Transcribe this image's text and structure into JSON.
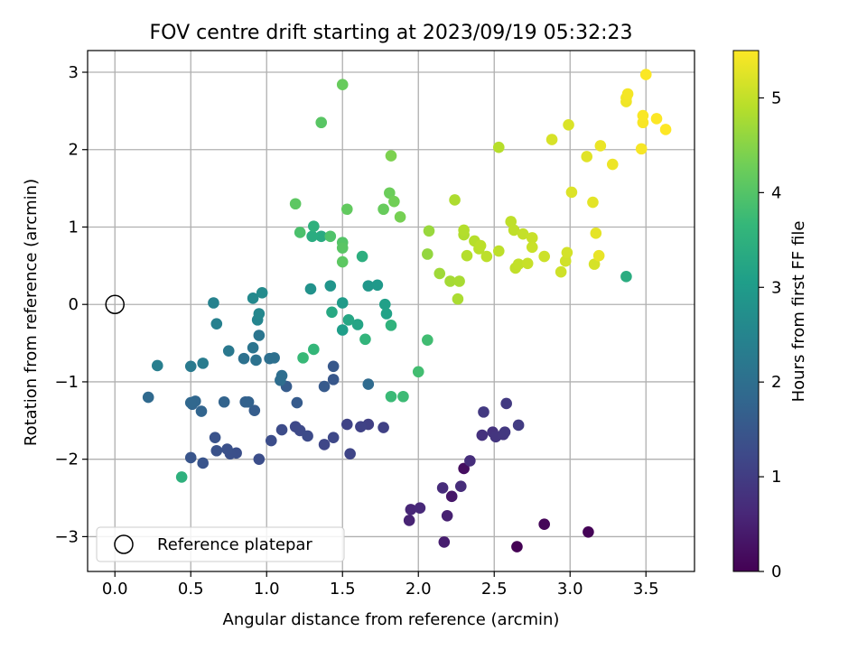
{
  "chart_data": {
    "type": "scatter",
    "title": "FOV centre drift starting at 2023/09/19 05:32:23",
    "xlabel": "Angular distance from reference (arcmin)",
    "ylabel": "Rotation from reference (arcmin)",
    "xlim": [
      -0.18,
      3.82
    ],
    "ylim": [
      -3.45,
      3.28
    ],
    "xticks": [
      0.0,
      0.5,
      1.0,
      1.5,
      2.0,
      2.5,
      3.0,
      3.5
    ],
    "xtick_labels": [
      "0.0",
      "0.5",
      "1.0",
      "1.5",
      "2.0",
      "2.5",
      "3.0",
      "3.5"
    ],
    "yticks": [
      -3,
      -2,
      -1,
      0,
      1,
      2,
      3
    ],
    "ytick_labels": [
      "−3",
      "−2",
      "−1",
      "0",
      "1",
      "2",
      "3"
    ],
    "grid": true,
    "legend_position": "lower-left",
    "legend": [
      {
        "label": "Reference platepar",
        "marker": "open-circle"
      }
    ],
    "reference_point": {
      "x": 0.0,
      "y": 0.0
    },
    "colorbar": {
      "label": "Hours from first FF file",
      "colormap": "viridis",
      "range": [
        0,
        5.5
      ],
      "ticks": [
        0,
        1,
        2,
        3,
        4,
        5
      ],
      "tick_labels": [
        "0",
        "1",
        "2",
        "3",
        "4",
        "5"
      ]
    },
    "colormap_stops": [
      "#440154",
      "#482878",
      "#3e4989",
      "#31688e",
      "#26828e",
      "#1f9e89",
      "#35b779",
      "#6ece58",
      "#b5de2b",
      "#fde725"
    ],
    "points": [
      [
        2.65,
        -3.13,
        0.0
      ],
      [
        3.12,
        -2.94,
        0.03
      ],
      [
        2.83,
        -2.84,
        0.08
      ],
      [
        2.3,
        -2.12,
        0.2
      ],
      [
        2.22,
        -2.48,
        0.35
      ],
      [
        2.17,
        -3.07,
        0.45
      ],
      [
        2.19,
        -2.73,
        0.5
      ],
      [
        1.94,
        -2.79,
        0.55
      ],
      [
        1.95,
        -2.65,
        0.6
      ],
      [
        2.01,
        -2.63,
        0.63
      ],
      [
        2.16,
        -2.37,
        0.68
      ],
      [
        2.28,
        -2.35,
        0.7
      ],
      [
        2.34,
        -2.02,
        0.72
      ],
      [
        2.42,
        -1.69,
        0.78
      ],
      [
        2.49,
        -1.65,
        0.82
      ],
      [
        2.51,
        -1.71,
        0.85
      ],
      [
        2.56,
        -1.68,
        0.88
      ],
      [
        2.57,
        -1.65,
        0.9
      ],
      [
        2.43,
        -1.39,
        0.92
      ],
      [
        2.58,
        -1.28,
        0.95
      ],
      [
        2.66,
        -1.56,
        0.98
      ],
      [
        1.67,
        -1.55,
        1.05
      ],
      [
        1.77,
        -1.59,
        1.07
      ],
      [
        1.62,
        -1.58,
        1.1
      ],
      [
        1.53,
        -1.55,
        1.12
      ],
      [
        1.55,
        -1.93,
        1.15
      ],
      [
        1.38,
        -1.81,
        1.18
      ],
      [
        1.44,
        -1.72,
        1.2
      ],
      [
        1.19,
        -1.58,
        1.22
      ],
      [
        1.22,
        -1.63,
        1.24
      ],
      [
        1.27,
        -1.7,
        1.26
      ],
      [
        1.1,
        -1.62,
        1.28
      ],
      [
        1.03,
        -1.76,
        1.3
      ],
      [
        0.95,
        -2.0,
        1.32
      ],
      [
        0.8,
        -1.92,
        1.34
      ],
      [
        0.76,
        -1.93,
        1.36
      ],
      [
        0.74,
        -1.87,
        1.38
      ],
      [
        0.67,
        -1.89,
        1.4
      ],
      [
        0.66,
        -1.72,
        1.42
      ],
      [
        0.58,
        -2.05,
        1.44
      ],
      [
        0.5,
        -1.98,
        1.46
      ],
      [
        1.44,
        -0.97,
        1.5
      ],
      [
        1.44,
        -0.8,
        1.52
      ],
      [
        1.38,
        -1.06,
        1.55
      ],
      [
        1.2,
        -1.27,
        1.58
      ],
      [
        1.13,
        -1.06,
        1.6
      ],
      [
        0.92,
        -1.37,
        1.62
      ],
      [
        0.86,
        -1.26,
        1.7
      ],
      [
        0.88,
        -1.26,
        1.72
      ],
      [
        0.72,
        -1.26,
        1.75
      ],
      [
        0.57,
        -1.38,
        1.78
      ],
      [
        0.51,
        -1.29,
        1.8
      ],
      [
        0.53,
        -1.25,
        1.82
      ],
      [
        0.5,
        -1.27,
        1.84
      ],
      [
        0.22,
        -1.2,
        1.88
      ],
      [
        1.67,
        -1.03,
        1.9
      ],
      [
        1.09,
        -0.98,
        1.95
      ],
      [
        1.1,
        -0.92,
        1.98
      ],
      [
        1.02,
        -0.7,
        2.0
      ],
      [
        1.05,
        -0.69,
        2.02
      ],
      [
        0.85,
        -0.7,
        2.05
      ],
      [
        0.93,
        -0.72,
        2.08
      ],
      [
        0.91,
        -0.56,
        2.12
      ],
      [
        0.95,
        -0.4,
        2.15
      ],
      [
        0.75,
        -0.6,
        2.2
      ],
      [
        0.5,
        -0.8,
        2.25
      ],
      [
        0.58,
        -0.76,
        2.3
      ],
      [
        0.28,
        -0.79,
        2.35
      ],
      [
        0.67,
        -0.25,
        2.4
      ],
      [
        0.65,
        0.02,
        2.45
      ],
      [
        0.94,
        -0.2,
        2.5
      ],
      [
        0.95,
        -0.12,
        2.55
      ],
      [
        0.91,
        0.08,
        2.6
      ],
      [
        0.97,
        0.15,
        2.65
      ],
      [
        1.29,
        0.2,
        2.8
      ],
      [
        1.42,
        0.24,
        2.85
      ],
      [
        1.67,
        0.24,
        2.9
      ],
      [
        1.73,
        0.25,
        2.95
      ],
      [
        1.5,
        0.02,
        3.0
      ],
      [
        1.5,
        -0.33,
        3.05
      ],
      [
        1.78,
        0.0,
        3.1
      ],
      [
        1.79,
        -0.12,
        3.15
      ],
      [
        1.6,
        -0.26,
        3.2
      ],
      [
        1.54,
        -0.2,
        3.25
      ],
      [
        1.43,
        -0.1,
        3.3
      ],
      [
        1.36,
        0.88,
        3.35
      ],
      [
        1.3,
        0.88,
        3.4
      ],
      [
        1.63,
        0.62,
        3.45
      ],
      [
        1.31,
        1.01,
        3.5
      ],
      [
        3.37,
        0.36,
        3.4
      ],
      [
        1.82,
        -0.27,
        3.55
      ],
      [
        1.65,
        -0.45,
        3.6
      ],
      [
        1.31,
        -0.58,
        3.65
      ],
      [
        1.24,
        -0.69,
        3.7
      ],
      [
        1.82,
        -1.19,
        3.72
      ],
      [
        1.9,
        -1.19,
        3.75
      ],
      [
        2.06,
        -0.46,
        3.8
      ],
      [
        2.0,
        -0.87,
        3.82
      ],
      [
        0.44,
        -2.23,
        3.5
      ],
      [
        1.22,
        0.93,
        3.9
      ],
      [
        1.42,
        0.88,
        3.95
      ],
      [
        1.5,
        0.8,
        4.0
      ],
      [
        1.5,
        0.73,
        4.05
      ],
      [
        1.5,
        0.55,
        4.1
      ],
      [
        1.53,
        1.23,
        4.15
      ],
      [
        1.77,
        1.23,
        4.2
      ],
      [
        1.81,
        1.44,
        4.25
      ],
      [
        1.84,
        1.33,
        4.3
      ],
      [
        1.88,
        1.13,
        4.35
      ],
      [
        1.19,
        1.3,
        4.1
      ],
      [
        1.36,
        2.35,
        4.05
      ],
      [
        1.5,
        2.84,
        4.2
      ],
      [
        1.82,
        1.92,
        4.4
      ],
      [
        2.06,
        0.65,
        4.6
      ],
      [
        2.07,
        0.95,
        4.65
      ],
      [
        2.14,
        0.4,
        4.7
      ],
      [
        2.21,
        0.3,
        4.75
      ],
      [
        2.27,
        0.3,
        4.78
      ],
      [
        2.26,
        0.07,
        4.8
      ],
      [
        2.24,
        1.35,
        4.82
      ],
      [
        2.3,
        0.9,
        4.85
      ],
      [
        2.3,
        0.96,
        4.87
      ],
      [
        2.32,
        0.63,
        4.88
      ],
      [
        2.37,
        0.82,
        4.9
      ],
      [
        2.4,
        0.72,
        4.92
      ],
      [
        2.41,
        0.76,
        4.94
      ],
      [
        2.45,
        0.62,
        4.95
      ],
      [
        2.53,
        0.69,
        4.96
      ],
      [
        2.53,
        2.03,
        4.9
      ],
      [
        2.61,
        1.07,
        4.97
      ],
      [
        2.63,
        0.96,
        4.98
      ],
      [
        2.64,
        0.47,
        4.99
      ],
      [
        2.66,
        0.52,
        5.0
      ],
      [
        2.69,
        0.91,
        5.02
      ],
      [
        2.72,
        0.53,
        5.04
      ],
      [
        2.75,
        0.86,
        5.05
      ],
      [
        2.75,
        0.74,
        5.06
      ],
      [
        2.83,
        0.62,
        5.08
      ],
      [
        2.94,
        0.42,
        5.1
      ],
      [
        2.97,
        0.56,
        5.12
      ],
      [
        2.98,
        0.67,
        5.14
      ],
      [
        3.16,
        0.52,
        5.16
      ],
      [
        2.88,
        2.13,
        5.18
      ],
      [
        2.99,
        2.32,
        5.2
      ],
      [
        3.01,
        1.45,
        5.22
      ],
      [
        3.11,
        1.91,
        5.25
      ],
      [
        3.15,
        1.32,
        5.28
      ],
      [
        3.17,
        0.92,
        5.3
      ],
      [
        3.19,
        0.63,
        5.32
      ],
      [
        3.2,
        2.05,
        5.34
      ],
      [
        3.28,
        1.81,
        5.36
      ],
      [
        3.37,
        2.62,
        5.38
      ],
      [
        3.37,
        2.67,
        5.4
      ],
      [
        3.38,
        2.72,
        5.42
      ],
      [
        3.47,
        2.01,
        5.44
      ],
      [
        3.48,
        2.35,
        5.46
      ],
      [
        3.48,
        2.44,
        5.47
      ],
      [
        3.5,
        2.97,
        5.48
      ],
      [
        3.57,
        2.4,
        5.49
      ],
      [
        3.63,
        2.26,
        5.5
      ]
    ]
  }
}
